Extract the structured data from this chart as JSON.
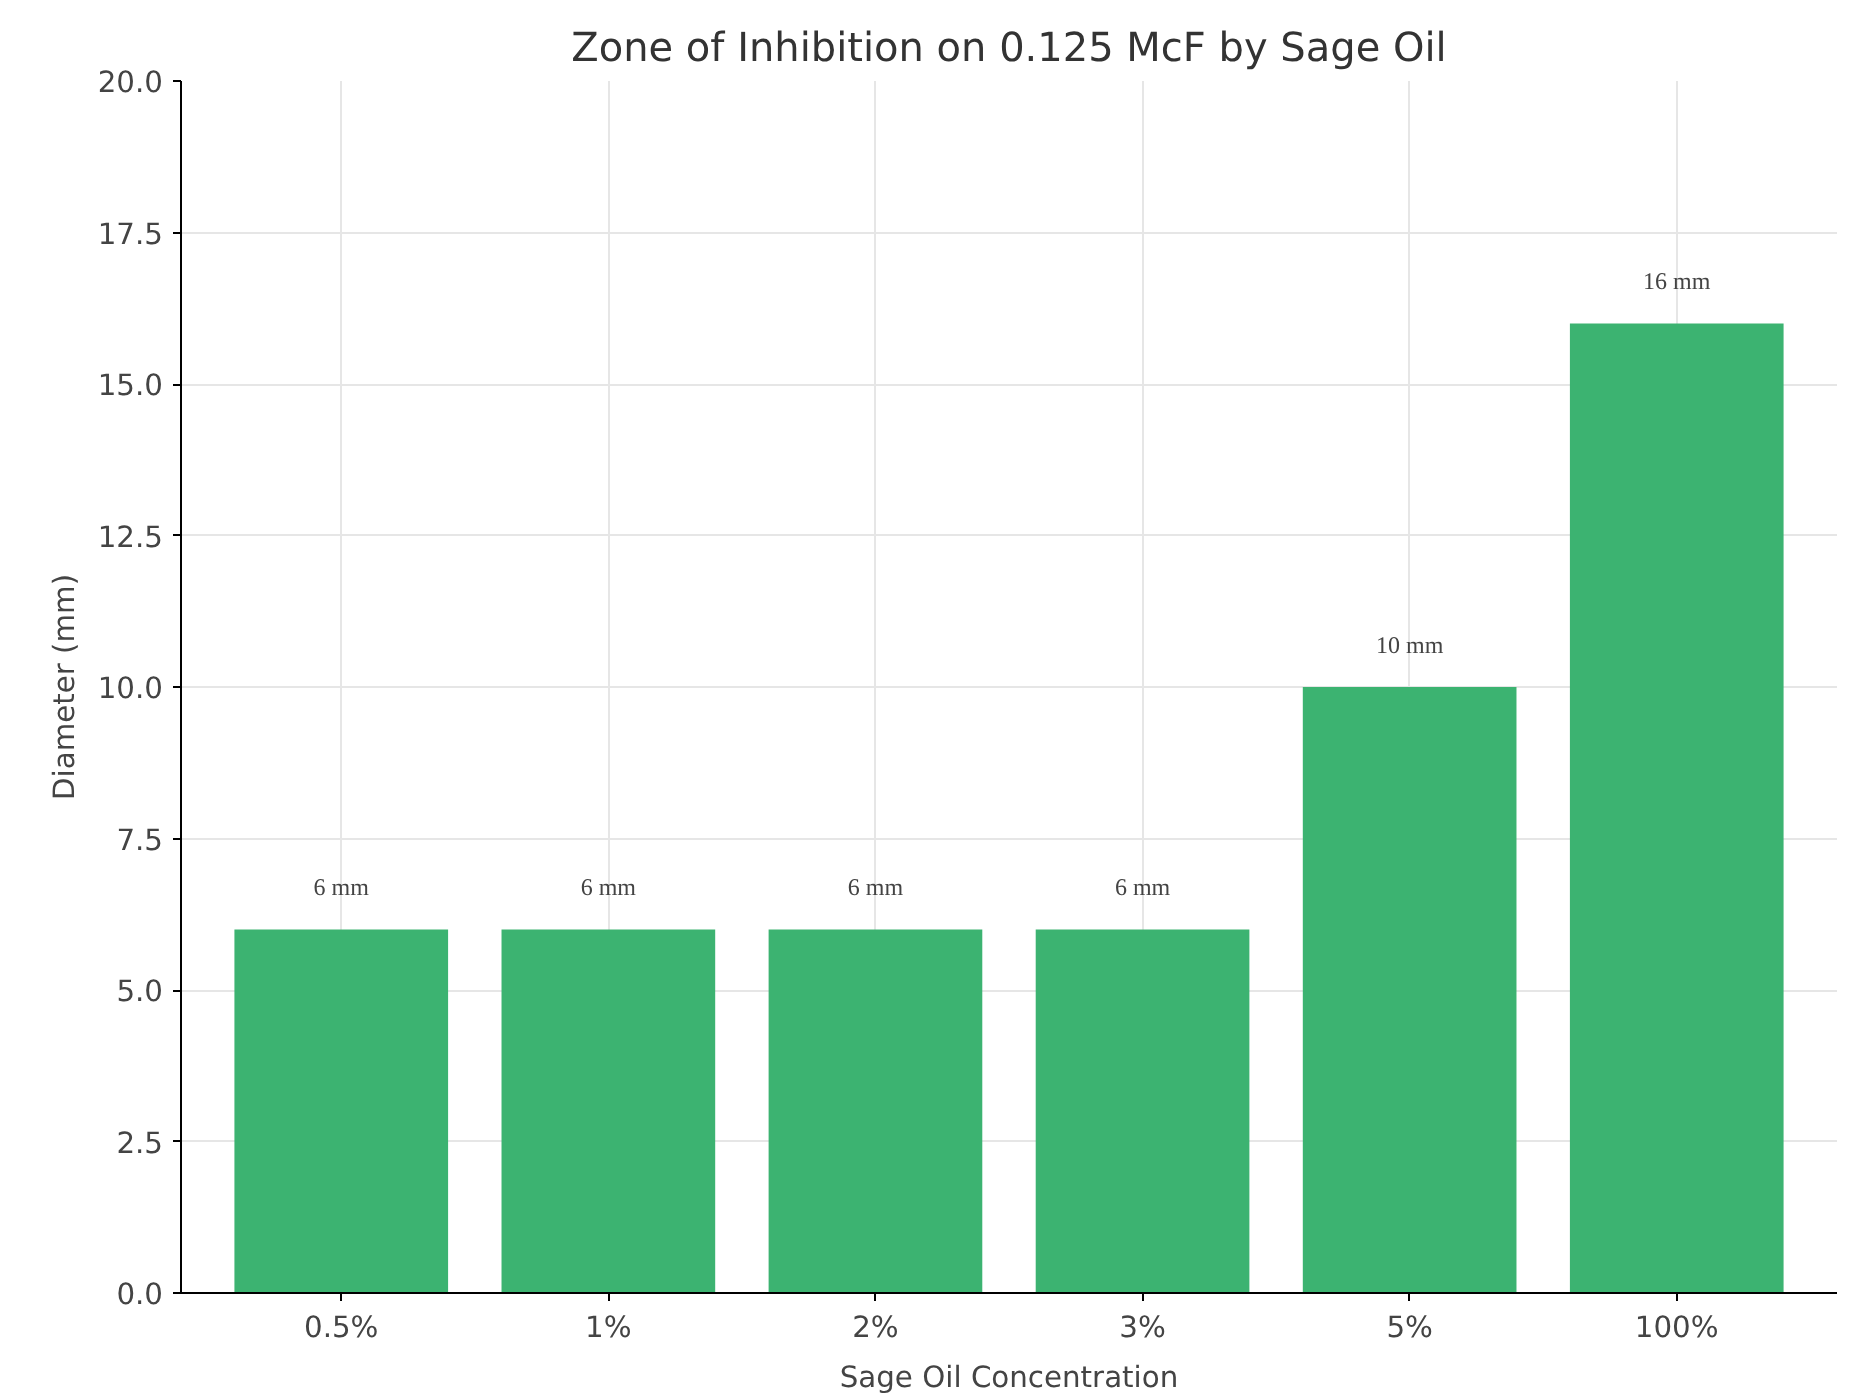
{
  "chart_data": {
    "type": "bar",
    "title": "Zone of Inhibition on 0.125 McF by Sage Oil",
    "xlabel": "Sage Oil Concentration",
    "ylabel": "Diameter (mm)",
    "categories": [
      "0.5%",
      "1%",
      "2%",
      "3%",
      "5%",
      "100%"
    ],
    "values": [
      6,
      6,
      6,
      6,
      10,
      16
    ],
    "value_labels": [
      "6 mm",
      "6 mm",
      "6 mm",
      "6 mm",
      "10 mm",
      "16 mm"
    ],
    "color": "#3cb371",
    "ylim": [
      0,
      20
    ],
    "yticks": [
      {
        "value": 0,
        "label": "0.0"
      },
      {
        "value": 2.5,
        "label": "2.5"
      },
      {
        "value": 5,
        "label": "5.0"
      },
      {
        "value": 7.5,
        "label": "7.5"
      },
      {
        "value": 10,
        "label": "10.0"
      },
      {
        "value": 12.5,
        "label": "12.5"
      },
      {
        "value": 15,
        "label": "15.0"
      },
      {
        "value": 17.5,
        "label": "17.5"
      },
      {
        "value": 20,
        "label": "20.0"
      }
    ],
    "grid": true
  }
}
